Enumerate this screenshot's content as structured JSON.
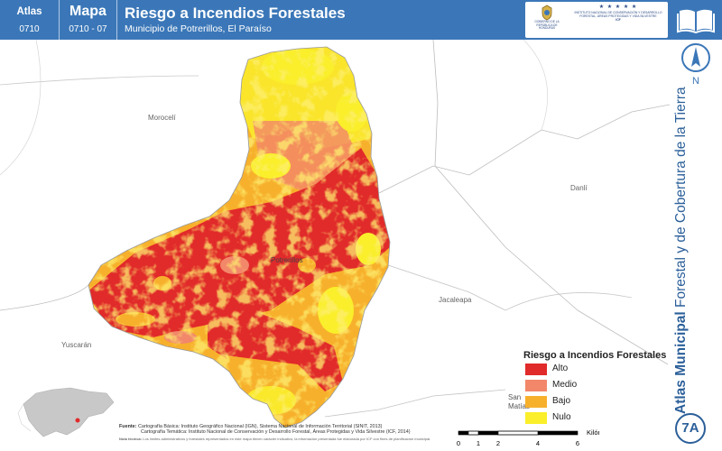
{
  "header": {
    "atlas_label": "Atlas",
    "atlas_number": "0710",
    "map_label": "Mapa",
    "map_number": "0710 - 07",
    "title": "Riesgo a Incendios Forestales",
    "subtitle": "Municipio de Potrerillos, El Paraíso",
    "bar_color": "#3b77b8"
  },
  "logos": {
    "left_text": "GOBIERNO DE LA REPÚBLICA DE HONDURAS",
    "right_stars": "★ ★ ★ ★ ★",
    "right_text": "INSTITUTO NACIONAL DE CONSERVACIÓN Y DESARROLLO FORESTAL, ÁREAS PROTEGIDAS Y VIDA SILVESTRE",
    "right_abbrev": "ICF"
  },
  "icons": {
    "book": "open-book-icon",
    "north": "north-arrow-icon"
  },
  "north_label": "N",
  "map": {
    "places": [
      {
        "name": "Morocelí"
      },
      {
        "name": "Danlí"
      },
      {
        "name": "Jacaleapa"
      },
      {
        "name": "Yuscarán"
      },
      {
        "name": "Potrerillos"
      },
      {
        "name": "San Matías"
      }
    ],
    "fill_colors": {
      "alto": "#e12a2a",
      "medio": "#f2876a",
      "bajo": "#f7b02c",
      "nulo": "#faef2a"
    }
  },
  "legend": {
    "title": "Riesgo a Incendios Forestales",
    "items": [
      {
        "label": "Alto",
        "color": "#e12a2a"
      },
      {
        "label": "Medio",
        "color": "#f2876a"
      },
      {
        "label": "Bajo",
        "color": "#f7b02c"
      },
      {
        "label": "Nulo",
        "color": "#faef2a"
      }
    ]
  },
  "scale": {
    "ticks": [
      "0",
      "1",
      "2",
      "4",
      "6"
    ],
    "unit": "Kilómetros"
  },
  "sources": {
    "label": "Fuente:",
    "line1": "Cartografía Básica: Instituto Geográfico Nacional (IGN), Sistema Nacional de Información Territorial (SINIT, 2013)",
    "line2": "Cartografía Temática: Instituto Nacional de Conservación y Desarrollo Forestal, Áreas Protegidas y Vida Silvestre (ICF, 2014)",
    "note_label": "Nota técnica:",
    "note": "Los límites administrativos y forestales representados en este mapa tienen carácter indicativo; la información presentada fue elaborada por ICF con fines de planificación municipal."
  },
  "side_title": {
    "bold": "Atlas Municipal",
    "rest": " Forestal y de Cobertura de la Tierra"
  },
  "badge": "7A"
}
